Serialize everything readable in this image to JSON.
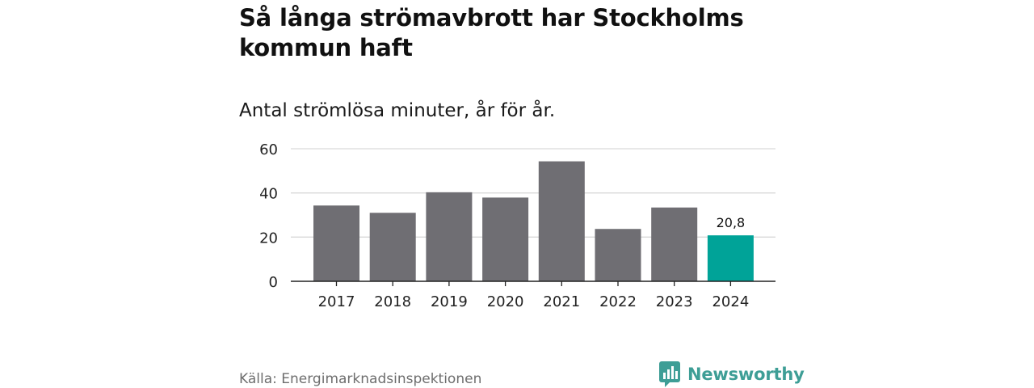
{
  "title": "Så långa strömavbrott har Stockholms kommun haft",
  "subtitle": "Antal strömlösa minuter, år för år.",
  "source": "Källa: Energimarknadsinspektionen",
  "logo": {
    "text": "Newsworthy",
    "icon": "newsworthy-logo-icon",
    "color": "#3e9e96"
  },
  "colors": {
    "bar": "#6f6e73",
    "highlight": "#00a398",
    "grid": "#d9d9d9",
    "axis": "#222222"
  },
  "chart_data": {
    "type": "bar",
    "title": "Så långa strömavbrott har Stockholms kommun haft",
    "subtitle": "Antal strömlösa minuter, år för år.",
    "xlabel": "",
    "ylabel": "",
    "categories": [
      "2017",
      "2018",
      "2019",
      "2020",
      "2021",
      "2022",
      "2023",
      "2024"
    ],
    "values": [
      34.3,
      31.0,
      40.3,
      37.9,
      54.3,
      23.7,
      33.4,
      20.8
    ],
    "highlight_index": 7,
    "data_labels": [
      {
        "index": 7,
        "text": "20,8"
      }
    ],
    "ylim": [
      0,
      60
    ],
    "yticks": [
      0,
      20,
      40,
      60
    ],
    "grid": true,
    "legend": "none"
  }
}
